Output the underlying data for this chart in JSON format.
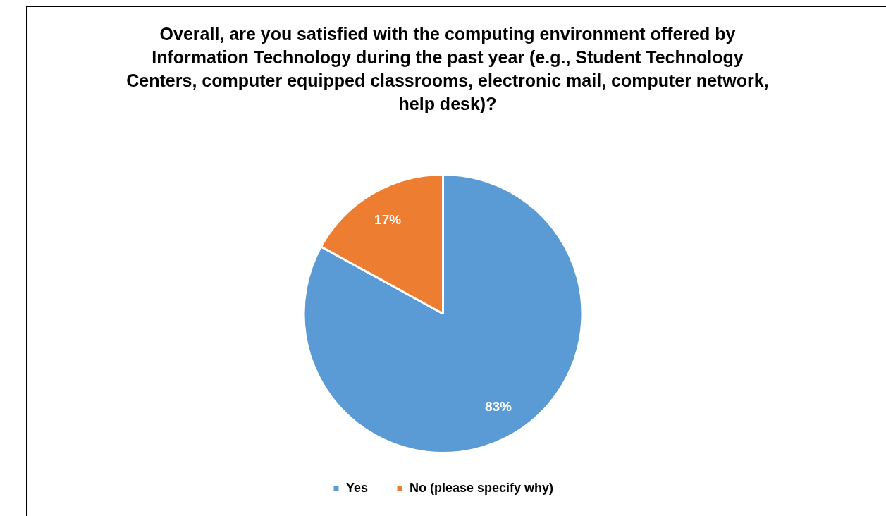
{
  "chart_data": {
    "type": "pie",
    "title": "Overall, are you satisfied with the computing environment offered by Information Technology during the past year (e.g., Student Technology Centers, computer equipped classrooms, electronic mail, computer network, help desk)?",
    "categories": [
      "Yes",
      "No (please specify why)"
    ],
    "values": [
      83,
      17
    ],
    "colors": [
      "#5b9bd5",
      "#ed7d31"
    ],
    "value_labels": [
      "83%",
      "17%"
    ],
    "legend": "bottom"
  }
}
